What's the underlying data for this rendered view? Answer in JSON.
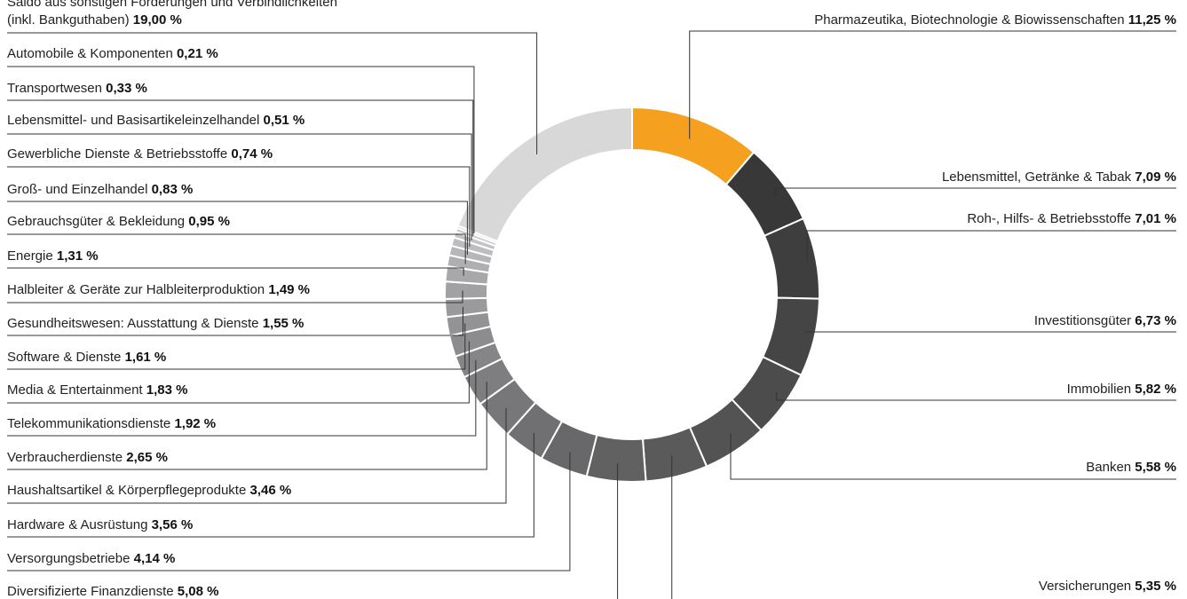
{
  "chart_data": {
    "type": "pie",
    "title": "",
    "segments": [
      {
        "label": "Pharmazeutika, Biotechnologie & Biowissenschaften",
        "value": 11.25,
        "value_label": "11,25 %",
        "color": "#F5A01E"
      },
      {
        "label": "Lebensmittel, Getränke & Tabak",
        "value": 7.09,
        "value_label": "7,09 %",
        "color": "#383838"
      },
      {
        "label": "Roh-, Hilfs- & Betriebsstoffe",
        "value": 7.01,
        "value_label": "7,01 %",
        "color": "#3e3e3e"
      },
      {
        "label": "Investitionsgüter",
        "value": 6.73,
        "value_label": "6,73 %",
        "color": "#454545"
      },
      {
        "label": "Immobilien",
        "value": 5.82,
        "value_label": "5,82 %",
        "color": "#4c4c4c"
      },
      {
        "label": "Banken",
        "value": 5.58,
        "value_label": "5,58 %",
        "color": "#535354"
      },
      {
        "label": "Versicherungen",
        "value": 5.35,
        "value_label": "5,35 %",
        "color": "#5a5a5b"
      },
      {
        "label": "Diversifizierte Finanzdienste",
        "value": 5.08,
        "value_label": "5,08 %",
        "color": "#616162"
      },
      {
        "label": "Versorgungsbetriebe",
        "value": 4.14,
        "value_label": "4,14 %",
        "color": "#68686a"
      },
      {
        "label": "Hardware & Ausrüstung",
        "value": 3.56,
        "value_label": "3,56 %",
        "color": "#707072"
      },
      {
        "label": "Haushaltsartikel & Körperpflegeprodukte",
        "value": 3.46,
        "value_label": "3,46 %",
        "color": "#77777a"
      },
      {
        "label": "Verbraucherdienste",
        "value": 2.65,
        "value_label": "2,65 %",
        "color": "#7e7e81"
      },
      {
        "label": "Telekommunikationsdienste",
        "value": 1.92,
        "value_label": "1,92 %",
        "color": "#858588"
      },
      {
        "label": "Media & Entertainment",
        "value": 1.83,
        "value_label": "1,83 %",
        "color": "#8c8c8f"
      },
      {
        "label": "Software & Dienste",
        "value": 1.61,
        "value_label": "1,61 %",
        "color": "#939396"
      },
      {
        "label": "Gesundheitswesen: Ausstattung & Dienste",
        "value": 1.55,
        "value_label": "1,55 %",
        "color": "#9a9a9d"
      },
      {
        "label": "Halbleiter & Geräte zur Halbleiterproduktion",
        "value": 1.49,
        "value_label": "1,49 %",
        "color": "#a1a1a4"
      },
      {
        "label": "Energie",
        "value": 1.31,
        "value_label": "1,31 %",
        "color": "#a8a8ab"
      },
      {
        "label": "Gebrauchsgüter & Bekleidung",
        "value": 0.95,
        "value_label": "0,95 %",
        "color": "#afafb2"
      },
      {
        "label": "Groß- und Einzelhandel",
        "value": 0.83,
        "value_label": "0,83 %",
        "color": "#b6b6b9"
      },
      {
        "label": "Gewerbliche Dienste & Betriebsstoffe",
        "value": 0.74,
        "value_label": "0,74 %",
        "color": "#bdbdc0"
      },
      {
        "label": "Lebensmittel- und Basisartikeleinzelhandel",
        "value": 0.51,
        "value_label": "0,51 %",
        "color": "#c4c4c7"
      },
      {
        "label": "Transportwesen",
        "value": 0.33,
        "value_label": "0,33 %",
        "color": "#cacacd"
      },
      {
        "label": "Automobile & Komponenten",
        "value": 0.21,
        "value_label": "0,21 %",
        "color": "#d0d0d2"
      },
      {
        "label": "Saldo aus sonstigen Forderungen und Verbindlichkeiten",
        "label_line2": "(inkl. Bankguthaben)",
        "value": 19.0,
        "value_label": "19,00 %",
        "color": "#d8d8d9"
      }
    ]
  }
}
